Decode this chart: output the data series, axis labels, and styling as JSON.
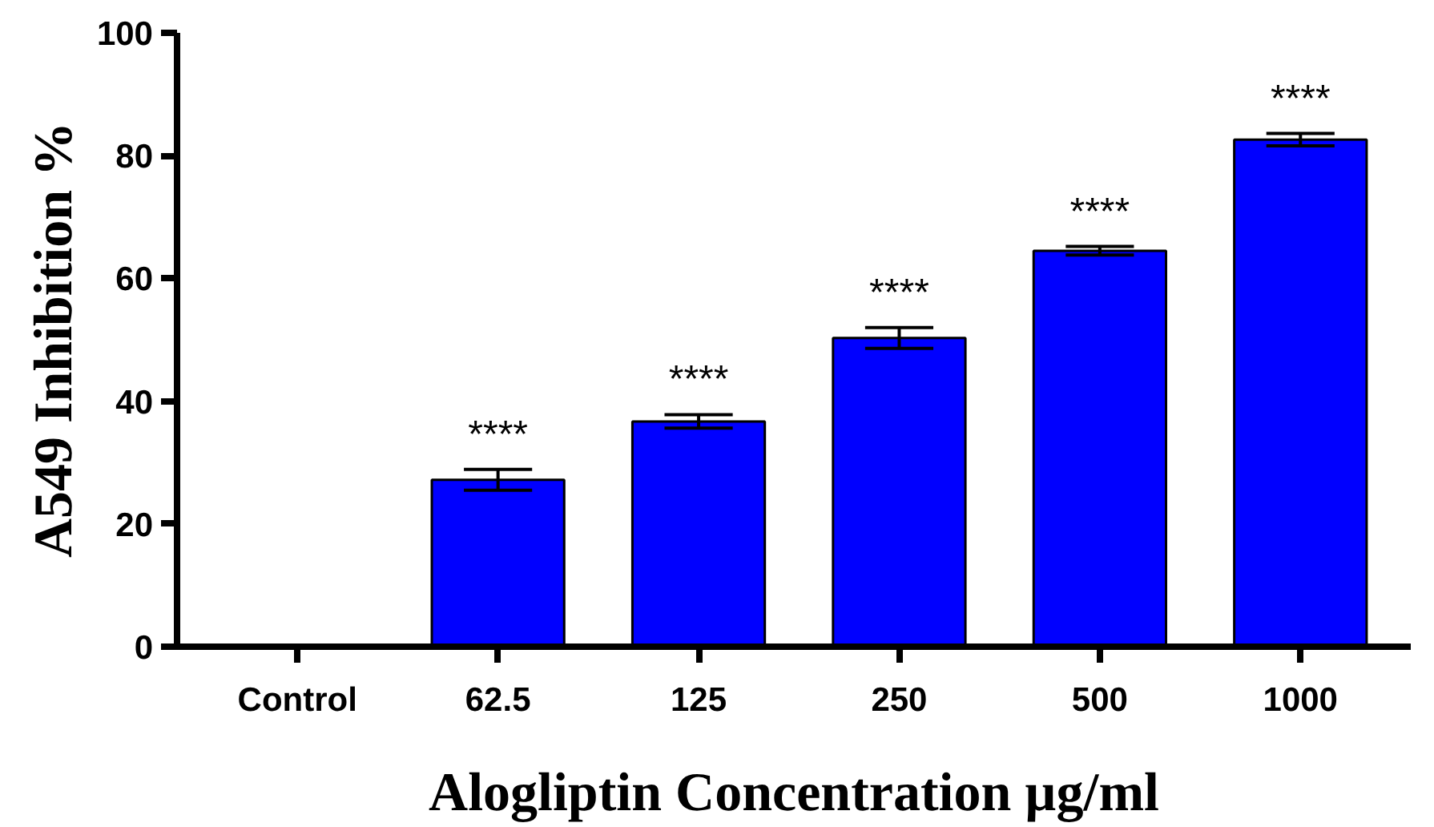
{
  "chart_data": {
    "type": "bar",
    "xlabel": "Alogliptin Concentration µg/ml",
    "ylabel": "A549 Inhibition %",
    "categories": [
      "Control",
      "62.5",
      "125",
      "250",
      "500",
      "1000"
    ],
    "values": [
      null,
      27.2,
      36.7,
      50.3,
      64.5,
      82.6
    ],
    "errors": [
      null,
      1.7,
      1.1,
      1.7,
      0.7,
      1.0
    ],
    "color": "#0000ff",
    "ylim": [
      0,
      100
    ],
    "yticks": [
      0,
      20,
      40,
      60,
      80,
      100
    ],
    "grid": false,
    "annotations": [
      "****",
      "****",
      "****",
      "****",
      "****"
    ]
  }
}
